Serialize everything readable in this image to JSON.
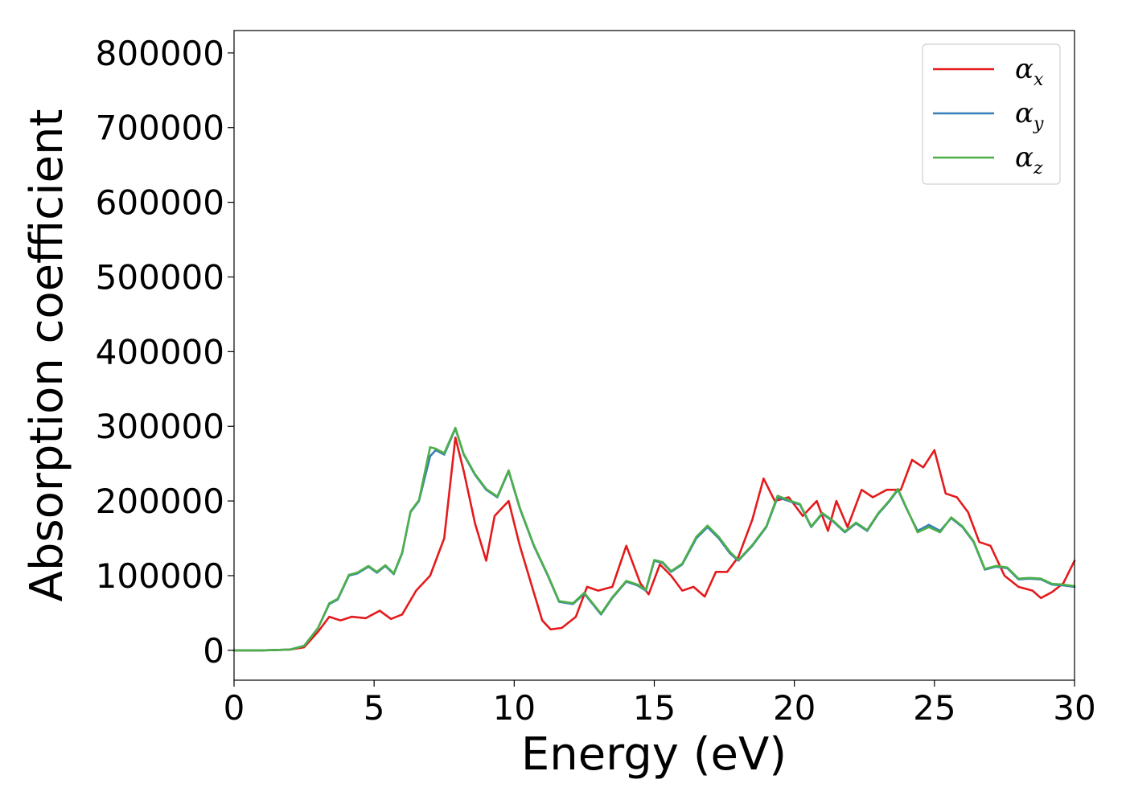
{
  "chart_data": {
    "type": "line",
    "title": "",
    "xlabel": "Energy (eV)",
    "ylabel": "Absorption coefficient",
    "xlim": [
      0,
      30
    ],
    "ylim": [
      -40000,
      830000
    ],
    "x_ticks": [
      "0",
      "5",
      "10",
      "15",
      "20",
      "25",
      "30"
    ],
    "y_ticks": [
      "0",
      "100000",
      "200000",
      "300000",
      "400000",
      "500000",
      "600000",
      "700000",
      "800000"
    ],
    "grid": false,
    "legend_position": "top-right",
    "series": [
      {
        "name": "α_x",
        "legend_base": "α",
        "legend_sub": "x",
        "color": "#e41a1c",
        "x": [
          0,
          1,
          2,
          2.5,
          3,
          3.4,
          3.8,
          4.2,
          4.7,
          5.2,
          5.6,
          6,
          6.5,
          7,
          7.5,
          7.9,
          8.2,
          8.6,
          9,
          9.3,
          9.8,
          10.2,
          10.6,
          11,
          11.3,
          11.7,
          12.2,
          12.6,
          13,
          13.5,
          14,
          14.5,
          14.8,
          15.2,
          15.6,
          16,
          16.4,
          16.8,
          17.2,
          17.6,
          18,
          18.5,
          18.9,
          19.3,
          19.8,
          20.3,
          20.8,
          21.2,
          21.5,
          21.9,
          22.4,
          22.8,
          23.3,
          23.8,
          24.2,
          24.6,
          25,
          25.4,
          25.8,
          26.2,
          26.6,
          27,
          27.5,
          28,
          28.5,
          28.8,
          29.2,
          29.6,
          30
        ],
        "y": [
          0,
          0,
          1000,
          4000,
          25000,
          45000,
          40000,
          45000,
          43000,
          53000,
          42000,
          48000,
          80000,
          100000,
          150000,
          285000,
          240000,
          170000,
          120000,
          180000,
          200000,
          140000,
          90000,
          40000,
          28000,
          30000,
          45000,
          85000,
          80000,
          85000,
          140000,
          90000,
          75000,
          115000,
          100000,
          80000,
          85000,
          72000,
          105000,
          105000,
          125000,
          175000,
          230000,
          200000,
          205000,
          180000,
          200000,
          160000,
          200000,
          165000,
          215000,
          205000,
          215000,
          215000,
          255000,
          245000,
          268000,
          210000,
          205000,
          185000,
          145000,
          140000,
          100000,
          85000,
          80000,
          70000,
          78000,
          90000,
          120000
        ]
      },
      {
        "name": "α_y",
        "legend_base": "α",
        "legend_sub": "y",
        "color": "#377eb8",
        "x": [
          0,
          1,
          2,
          2.5,
          3,
          3.4,
          3.7,
          4.1,
          4.4,
          4.8,
          5.1,
          5.4,
          5.7,
          6,
          6.3,
          6.6,
          7,
          7.2,
          7.5,
          7.9,
          8.2,
          8.6,
          9,
          9.4,
          9.8,
          10.2,
          10.7,
          11.2,
          11.6,
          12.1,
          12.5,
          12.8,
          13.1,
          13.5,
          14,
          14.4,
          14.7,
          15,
          15.3,
          15.6,
          16,
          16.5,
          16.9,
          17.3,
          17.7,
          18,
          18.5,
          19,
          19.4,
          19.8,
          20.2,
          20.6,
          21,
          21.4,
          21.8,
          22.2,
          22.6,
          23,
          23.4,
          23.7,
          24,
          24.4,
          24.8,
          25.2,
          25.6,
          26,
          26.4,
          26.8,
          27.2,
          27.6,
          28,
          28.4,
          28.8,
          29.2,
          29.6,
          30
        ],
        "y": [
          0,
          0,
          1000,
          6000,
          30000,
          62000,
          68000,
          100000,
          103000,
          112000,
          104000,
          113000,
          102000,
          130000,
          185000,
          200000,
          260000,
          268000,
          262000,
          297000,
          262000,
          235000,
          215000,
          205000,
          240000,
          190000,
          140000,
          100000,
          65000,
          62000,
          76000,
          62000,
          48000,
          70000,
          92000,
          87000,
          80000,
          120000,
          117000,
          105000,
          115000,
          150000,
          165000,
          150000,
          130000,
          120000,
          140000,
          165000,
          205000,
          200000,
          195000,
          165000,
          183000,
          172000,
          158000,
          170000,
          160000,
          183000,
          200000,
          215000,
          190000,
          160000,
          168000,
          160000,
          177000,
          165000,
          145000,
          108000,
          112000,
          110000,
          95000,
          96000,
          95000,
          88000,
          87000,
          85000
        ]
      },
      {
        "name": "α_z",
        "legend_base": "α",
        "legend_sub": "z",
        "color": "#4daf4a",
        "x": [
          0,
          1,
          2,
          2.5,
          3,
          3.4,
          3.7,
          4.1,
          4.4,
          4.8,
          5.1,
          5.4,
          5.7,
          6,
          6.3,
          6.6,
          7,
          7.2,
          7.5,
          7.9,
          8.2,
          8.6,
          9,
          9.4,
          9.8,
          10.2,
          10.7,
          11.2,
          11.6,
          12.1,
          12.5,
          12.8,
          13.1,
          13.5,
          14,
          14.4,
          14.7,
          15,
          15.3,
          15.6,
          16,
          16.5,
          16.9,
          17.3,
          17.7,
          18,
          18.5,
          19,
          19.4,
          19.8,
          20.2,
          20.6,
          21,
          21.4,
          21.8,
          22.2,
          22.6,
          23,
          23.4,
          23.7,
          24,
          24.4,
          24.8,
          25.2,
          25.6,
          26,
          26.4,
          26.8,
          27.2,
          27.6,
          28,
          28.4,
          28.8,
          29.2,
          29.6,
          30
        ],
        "y": [
          0,
          0,
          1000,
          6000,
          30000,
          63000,
          69000,
          101000,
          104000,
          113000,
          105000,
          114000,
          103000,
          131000,
          186000,
          201000,
          272000,
          270000,
          264000,
          298000,
          263000,
          236000,
          216000,
          206000,
          241000,
          191000,
          141000,
          101000,
          66000,
          63000,
          77000,
          63000,
          49000,
          71000,
          93000,
          88000,
          81000,
          121000,
          118000,
          106000,
          116000,
          152000,
          167000,
          152000,
          132000,
          121000,
          141000,
          166000,
          207000,
          201000,
          196000,
          166000,
          184000,
          173000,
          159000,
          171000,
          161000,
          184000,
          201000,
          216000,
          191000,
          158000,
          165000,
          158000,
          178000,
          166000,
          146000,
          109000,
          113000,
          111000,
          96000,
          97000,
          96000,
          89000,
          88000,
          86000
        ]
      }
    ]
  }
}
